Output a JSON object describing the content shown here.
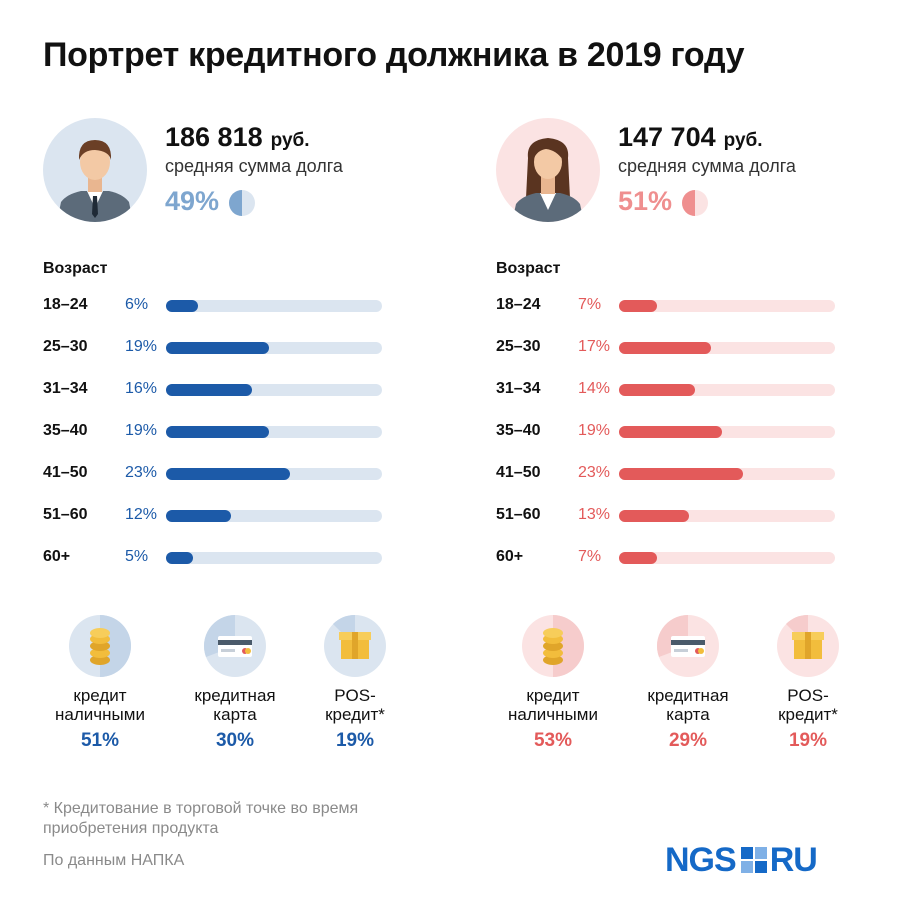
{
  "title": "Портрет кредитного должника в 2019 году",
  "colors": {
    "male": "#1c5aa8",
    "male_light": "#dbe5f0",
    "female": "#e35a5a",
    "female_light": "#fbe3e3"
  },
  "male": {
    "amount": "186 818",
    "currency": "руб.",
    "amount_label": "средняя сумма долга",
    "share": "49%",
    "age_header": "Возраст",
    "products": [
      {
        "name": "кредит\nналичными",
        "value": "51%",
        "icon": "coins-icon"
      },
      {
        "name": "кредитная\nкарта",
        "value": "30%",
        "icon": "credit-card-icon"
      },
      {
        "name": "POS-\nкредит*",
        "value": "19%",
        "icon": "box-icon"
      }
    ]
  },
  "female": {
    "amount": "147 704",
    "currency": "руб.",
    "amount_label": "средняя сумма долга",
    "share": "51%",
    "age_header": "Возраст",
    "products": [
      {
        "name": "кредит\nналичными",
        "value": "53%",
        "icon": "coins-icon"
      },
      {
        "name": "кредитная\nкарта",
        "value": "29%",
        "icon": "credit-card-icon"
      },
      {
        "name": "POS-\nкредит*",
        "value": "19%",
        "icon": "box-icon"
      }
    ]
  },
  "chart_data": {
    "type": "bar",
    "categories": [
      "18–24",
      "25–30",
      "31–34",
      "35–40",
      "41–50",
      "51–60",
      "60+"
    ],
    "series": [
      {
        "values": [
          6,
          19,
          16,
          19,
          23,
          12,
          5
        ],
        "labels": [
          "6%",
          "19%",
          "16%",
          "19%",
          "23%",
          "12%",
          "5%"
        ]
      },
      {
        "values": [
          7,
          17,
          14,
          19,
          23,
          13,
          7
        ],
        "labels": [
          "7%",
          "17%",
          "14%",
          "19%",
          "23%",
          "13%",
          "7%"
        ]
      }
    ],
    "xlabel": "Возраст",
    "ylim": [
      0,
      40
    ],
    "orientation": "horizontal"
  },
  "footnote": "* Кредитование в торговой точке во время приобретения продукта",
  "source": "По данным НАПКА",
  "logo": {
    "left": "NGS",
    "right": "RU"
  }
}
